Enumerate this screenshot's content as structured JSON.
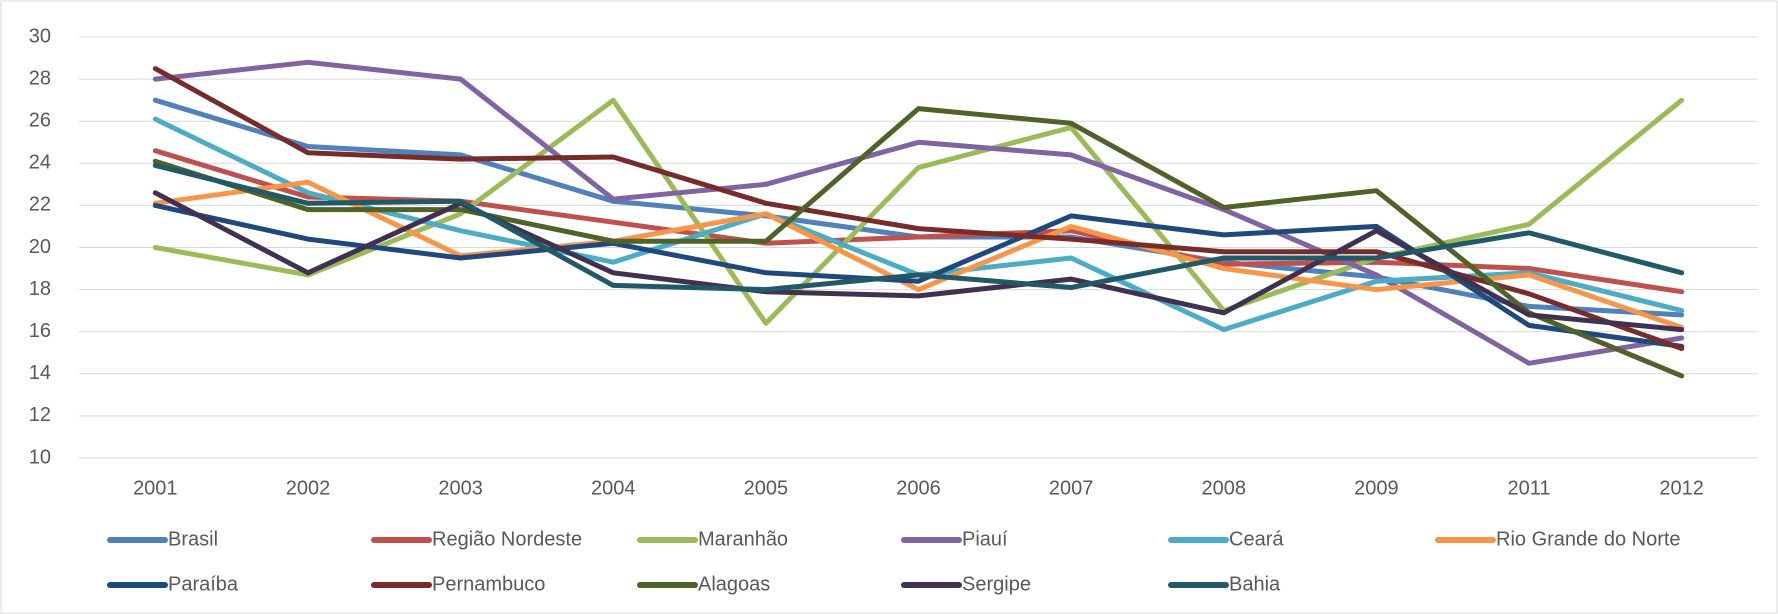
{
  "chart_data": {
    "type": "line",
    "categories": [
      "2001",
      "2002",
      "2003",
      "2004",
      "2005",
      "2006",
      "2007",
      "2008",
      "2009",
      "2011",
      "2012"
    ],
    "ylim": [
      10,
      30
    ],
    "yticks": [
      10,
      12,
      14,
      16,
      18,
      20,
      22,
      24,
      26,
      28,
      30
    ],
    "grid": true,
    "series": [
      {
        "name": "Brasil",
        "color": "#4f81bd",
        "values": [
          27,
          24.8,
          24.4,
          22.2,
          21.5,
          20.5,
          20.5,
          19.3,
          18.6,
          17.2,
          16.8
        ]
      },
      {
        "name": "Região Nordeste",
        "color": "#c0504d",
        "values": [
          24.6,
          22.4,
          22.2,
          21.2,
          20.2,
          20.5,
          20.8,
          19.2,
          19.3,
          19,
          17.9
        ]
      },
      {
        "name": "Maranhão",
        "color": "#9bbb59",
        "values": [
          20,
          18.7,
          21.6,
          27,
          16.4,
          23.8,
          25.7,
          17,
          19.5,
          21.1,
          27
        ]
      },
      {
        "name": "Piauí",
        "color": "#8064a2",
        "values": [
          28,
          28.8,
          28,
          22.3,
          23,
          25,
          24.4,
          21.8,
          18.7,
          14.5,
          15.7
        ]
      },
      {
        "name": "Ceará",
        "color": "#4bacc6",
        "values": [
          26.1,
          22.6,
          20.8,
          19.3,
          21.6,
          18.7,
          19.5,
          16.1,
          18.4,
          18.8,
          17
        ]
      },
      {
        "name": "Rio Grande do Norte",
        "color": "#f79646",
        "values": [
          22.1,
          23.1,
          19.6,
          20.3,
          21.6,
          18,
          21,
          19,
          18,
          18.7,
          16.2
        ]
      },
      {
        "name": "Paraíba",
        "color": "#1f497d",
        "values": [
          22,
          20.4,
          19.5,
          20.2,
          18.8,
          18.4,
          21.5,
          20.6,
          21,
          16.3,
          15.3
        ]
      },
      {
        "name": "Pernambuco",
        "color": "#772c2a",
        "values": [
          28.5,
          24.5,
          24.2,
          24.3,
          22.1,
          20.9,
          20.4,
          19.8,
          19.8,
          17.8,
          15.2
        ]
      },
      {
        "name": "Alagoas",
        "color": "#4f6228",
        "values": [
          24.1,
          21.8,
          21.8,
          20.3,
          20.3,
          26.6,
          25.9,
          21.9,
          22.7,
          16.9,
          13.9
        ]
      },
      {
        "name": "Sergipe",
        "color": "#403151",
        "values": [
          22.6,
          18.8,
          22.1,
          18.8,
          17.9,
          17.7,
          18.5,
          16.9,
          20.8,
          16.8,
          16.1
        ]
      },
      {
        "name": "Bahia",
        "color": "#215968",
        "values": [
          23.9,
          22.1,
          22.2,
          18.2,
          18,
          18.7,
          18.1,
          19.5,
          19.5,
          20.7,
          18.8
        ]
      }
    ]
  }
}
